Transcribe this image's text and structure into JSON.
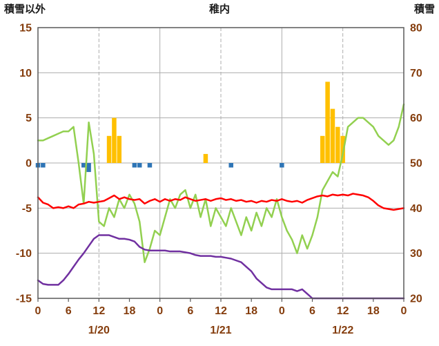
{
  "header": {
    "left_label": "積雪以外",
    "title": "稚内",
    "right_label": "積雪"
  },
  "colors": {
    "tick_label": "#843C0C",
    "grid": "#ADADAD",
    "border": "#595959",
    "orange": "#FFC000",
    "blue": "#2E75B6",
    "red": "#FF0000",
    "purple": "#7030A0",
    "green": "#92D050"
  },
  "chart_data": {
    "type": "combo",
    "title": "稚内",
    "left_axis": {
      "label": "積雪以外",
      "min": -15,
      "max": 15,
      "ticks": [
        15,
        10,
        5,
        0,
        -5,
        -10,
        -15
      ]
    },
    "right_axis": {
      "label": "積雪",
      "min": 20,
      "max": 80,
      "ticks": [
        80,
        70,
        60,
        50,
        40,
        30,
        20
      ]
    },
    "x_axis": {
      "hours_total": 72,
      "hour_ticks": [
        "0",
        "6",
        "12",
        "18",
        "0",
        "6",
        "12",
        "18",
        "0",
        "6",
        "12",
        "18",
        "0"
      ],
      "hour_tick_positions": [
        0,
        6,
        12,
        18,
        24,
        30,
        36,
        42,
        48,
        54,
        60,
        66,
        72
      ],
      "date_labels": [
        "1/20",
        "1/21",
        "1/22"
      ],
      "date_label_hours": [
        12,
        36,
        60
      ],
      "solid_gridline_hours": [
        24,
        48
      ],
      "dashed_gridline_hours": [
        12,
        36,
        60
      ]
    },
    "series": [
      {
        "id": "orange-bars",
        "type": "bar",
        "axis": "left",
        "color": "#FFC000",
        "points": [
          {
            "hour": 14,
            "value": 3
          },
          {
            "hour": 15,
            "value": 5
          },
          {
            "hour": 16,
            "value": 3
          },
          {
            "hour": 33,
            "value": 1
          },
          {
            "hour": 56,
            "value": 3
          },
          {
            "hour": 57,
            "value": 9
          },
          {
            "hour": 58,
            "value": 6
          },
          {
            "hour": 59,
            "value": 4
          },
          {
            "hour": 60,
            "value": 3
          }
        ]
      },
      {
        "id": "blue-bars",
        "type": "bar",
        "axis": "left",
        "color": "#2E75B6",
        "points": [
          {
            "hour": 0,
            "value": -0.5
          },
          {
            "hour": 1,
            "value": -0.5
          },
          {
            "hour": 9,
            "value": -0.5
          },
          {
            "hour": 10,
            "value": -1.0
          },
          {
            "hour": 19,
            "value": -0.5
          },
          {
            "hour": 20,
            "value": -0.5
          },
          {
            "hour": 22,
            "value": -0.5
          },
          {
            "hour": 38,
            "value": -0.5
          },
          {
            "hour": 48,
            "value": -0.5
          }
        ]
      },
      {
        "id": "green-line",
        "type": "line",
        "axis": "right",
        "color": "#92D050",
        "values": [
          55,
          55,
          55.5,
          56,
          56.5,
          57,
          57,
          58,
          50,
          41,
          59,
          52,
          37,
          36,
          40,
          38,
          42,
          40,
          43,
          41,
          37,
          28,
          31,
          35,
          34,
          38,
          42,
          40,
          43,
          44,
          40,
          43,
          38,
          42,
          36,
          40,
          38,
          36,
          40,
          37,
          34,
          38,
          35,
          39,
          36,
          40,
          38,
          42,
          38,
          35,
          33,
          30,
          34,
          31,
          34,
          38,
          44,
          46,
          48,
          47,
          52,
          58,
          59,
          60,
          60,
          59,
          58,
          56,
          55,
          54,
          55,
          58,
          63
        ]
      },
      {
        "id": "purple-line",
        "type": "line",
        "axis": "left",
        "color": "#7030A0",
        "values": [
          -13.0,
          -13.4,
          -13.5,
          -13.5,
          -13.5,
          -13.0,
          -12.3,
          -11.5,
          -10.7,
          -10.0,
          -9.2,
          -8.4,
          -8.0,
          -8.0,
          -8.0,
          -8.2,
          -8.4,
          -8.4,
          -8.5,
          -8.7,
          -9.3,
          -9.6,
          -9.7,
          -9.7,
          -9.7,
          -9.7,
          -9.8,
          -9.8,
          -9.8,
          -9.9,
          -10.0,
          -10.2,
          -10.3,
          -10.3,
          -10.3,
          -10.4,
          -10.4,
          -10.5,
          -10.6,
          -10.8,
          -11.0,
          -11.5,
          -12.0,
          -12.8,
          -13.3,
          -13.8,
          -14.0,
          -14.0,
          -14.0,
          -14.0,
          -14.0,
          -14.2,
          -14.0,
          -14.5,
          -15.0,
          -15.0,
          -15.0,
          -15.0,
          -15.0,
          -15.0,
          -15.0,
          -15.0,
          -15.0,
          -15.0,
          -15.0,
          -15.0,
          -15.0,
          -15.0,
          -15.0,
          -15.0,
          -15.0,
          -15.0,
          -15.0
        ]
      },
      {
        "id": "red-line",
        "type": "line",
        "axis": "left",
        "color": "#FF0000",
        "values": [
          -3.8,
          -4.4,
          -4.6,
          -5.0,
          -4.9,
          -5.0,
          -4.8,
          -5.0,
          -4.6,
          -4.5,
          -4.3,
          -4.4,
          -4.3,
          -4.2,
          -3.9,
          -3.6,
          -4.0,
          -3.8,
          -4.0,
          -4.1,
          -4.0,
          -4.5,
          -4.2,
          -4.0,
          -4.3,
          -4.0,
          -4.2,
          -4.0,
          -4.1,
          -3.8,
          -4.0,
          -4.2,
          -4.1,
          -4.0,
          -4.2,
          -4.0,
          -3.9,
          -4.1,
          -4.0,
          -4.2,
          -4.1,
          -4.3,
          -4.2,
          -4.4,
          -4.2,
          -4.3,
          -4.1,
          -4.2,
          -4.0,
          -4.2,
          -4.3,
          -4.2,
          -4.4,
          -4.1,
          -3.9,
          -3.7,
          -3.6,
          -3.7,
          -3.5,
          -3.6,
          -3.5,
          -3.6,
          -3.4,
          -3.5,
          -3.6,
          -3.8,
          -4.2,
          -4.7,
          -5.0,
          -5.1,
          -5.2,
          -5.1,
          -5.0
        ]
      }
    ]
  }
}
